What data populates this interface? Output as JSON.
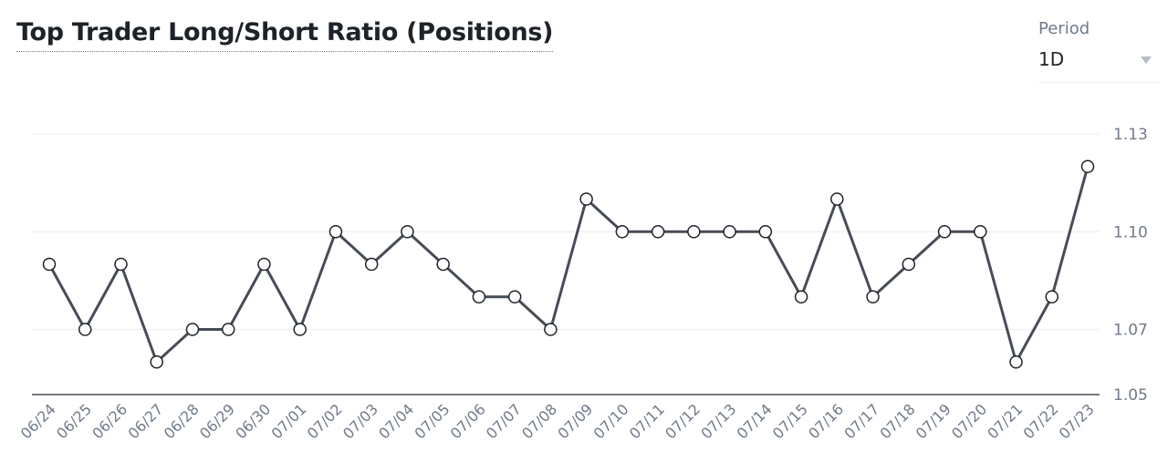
{
  "title": "Top Trader Long/Short Ratio (Positions)",
  "period": {
    "label": "Period",
    "selected": "1D"
  },
  "colors": {
    "line": "#474d57",
    "grid": "#eaecef",
    "axis": "#474d57",
    "tick_text": "#707a8a",
    "point_fill": "#ffffff"
  },
  "chart_data": {
    "type": "line",
    "title": "Top Trader Long/Short Ratio (Positions)",
    "xlabel": "",
    "ylabel": "",
    "categories": [
      "06/24",
      "06/25",
      "06/26",
      "06/27",
      "06/28",
      "06/29",
      "06/30",
      "07/01",
      "07/02",
      "07/03",
      "07/04",
      "07/05",
      "07/06",
      "07/07",
      "07/08",
      "07/09",
      "07/10",
      "07/11",
      "07/12",
      "07/13",
      "07/14",
      "07/15",
      "07/16",
      "07/17",
      "07/18",
      "07/19",
      "07/20",
      "07/21",
      "07/22",
      "07/23"
    ],
    "series": [
      {
        "values": [
          1.09,
          1.07,
          1.09,
          1.06,
          1.07,
          1.07,
          1.09,
          1.07,
          1.1,
          1.09,
          1.1,
          1.09,
          1.08,
          1.08,
          1.07,
          1.11,
          1.1,
          1.1,
          1.1,
          1.1,
          1.1,
          1.08,
          1.11,
          1.08,
          1.09,
          1.1,
          1.1,
          1.06,
          1.08,
          1.12
        ]
      }
    ],
    "y_ticks": [
      "1.05",
      "1.07",
      "1.10",
      "1.13"
    ],
    "y_axis_side": "right",
    "ylim": [
      1.05,
      1.13
    ],
    "grid": true,
    "legend": "none",
    "markers": "hollow-circle"
  }
}
